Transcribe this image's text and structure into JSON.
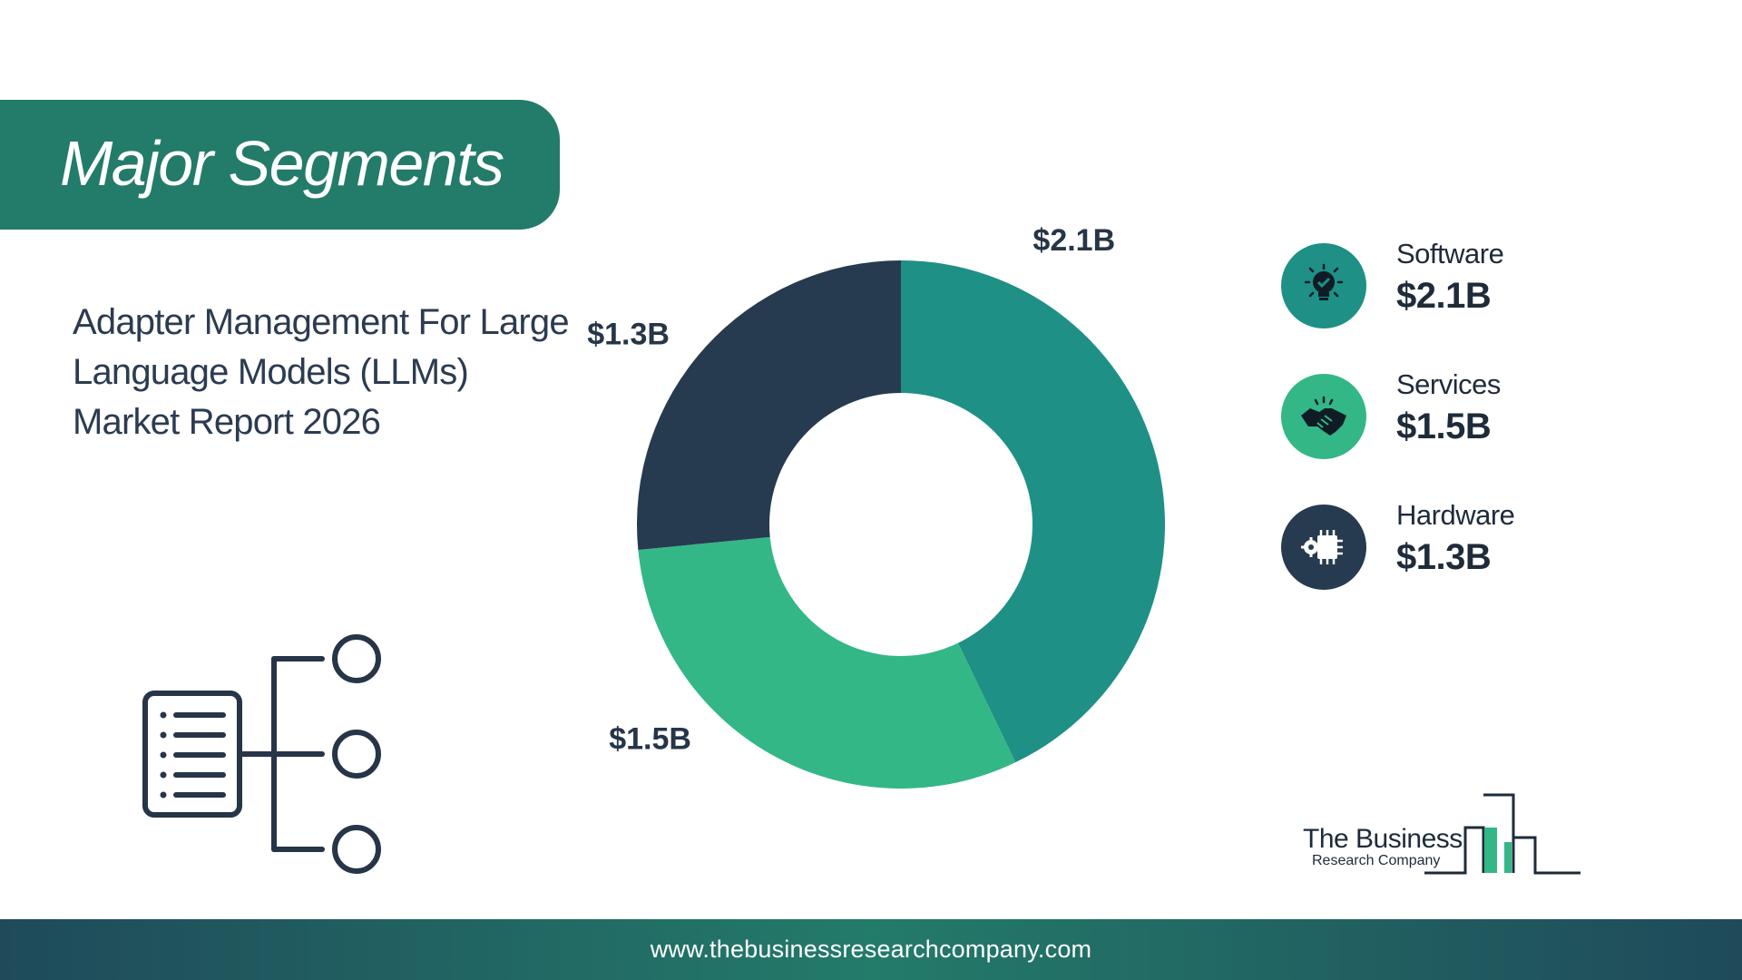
{
  "banner": {
    "title": "Major Segments"
  },
  "subtitle": {
    "line1": "Adapter Management For Large",
    "line2": "Language Models (LLMs)",
    "line3": "Market Report 2026"
  },
  "chart_data": {
    "type": "pie",
    "donut": true,
    "categories": [
      "Software",
      "Services",
      "Hardware"
    ],
    "values": [
      2.1,
      1.5,
      1.3
    ],
    "value_labels": [
      "$2.1B",
      "$1.5B",
      "$1.3B"
    ],
    "colors": [
      "#1e9086",
      "#33b787",
      "#263a50"
    ],
    "legend_placement": "right"
  },
  "legend": {
    "items": [
      {
        "name": "Software",
        "value": "$2.1B",
        "color": "#1e9086",
        "icon": "lightbulb-icon"
      },
      {
        "name": "Services",
        "value": "$1.5B",
        "color": "#33b787",
        "icon": "handshake-icon"
      },
      {
        "name": "Hardware",
        "value": "$1.3B",
        "color": "#263a50",
        "icon": "chip-gear-icon"
      }
    ]
  },
  "logo": {
    "line1": "The Business",
    "line2": "Research Company"
  },
  "footer": {
    "url": "www.thebusinessresearchcompany.com"
  }
}
